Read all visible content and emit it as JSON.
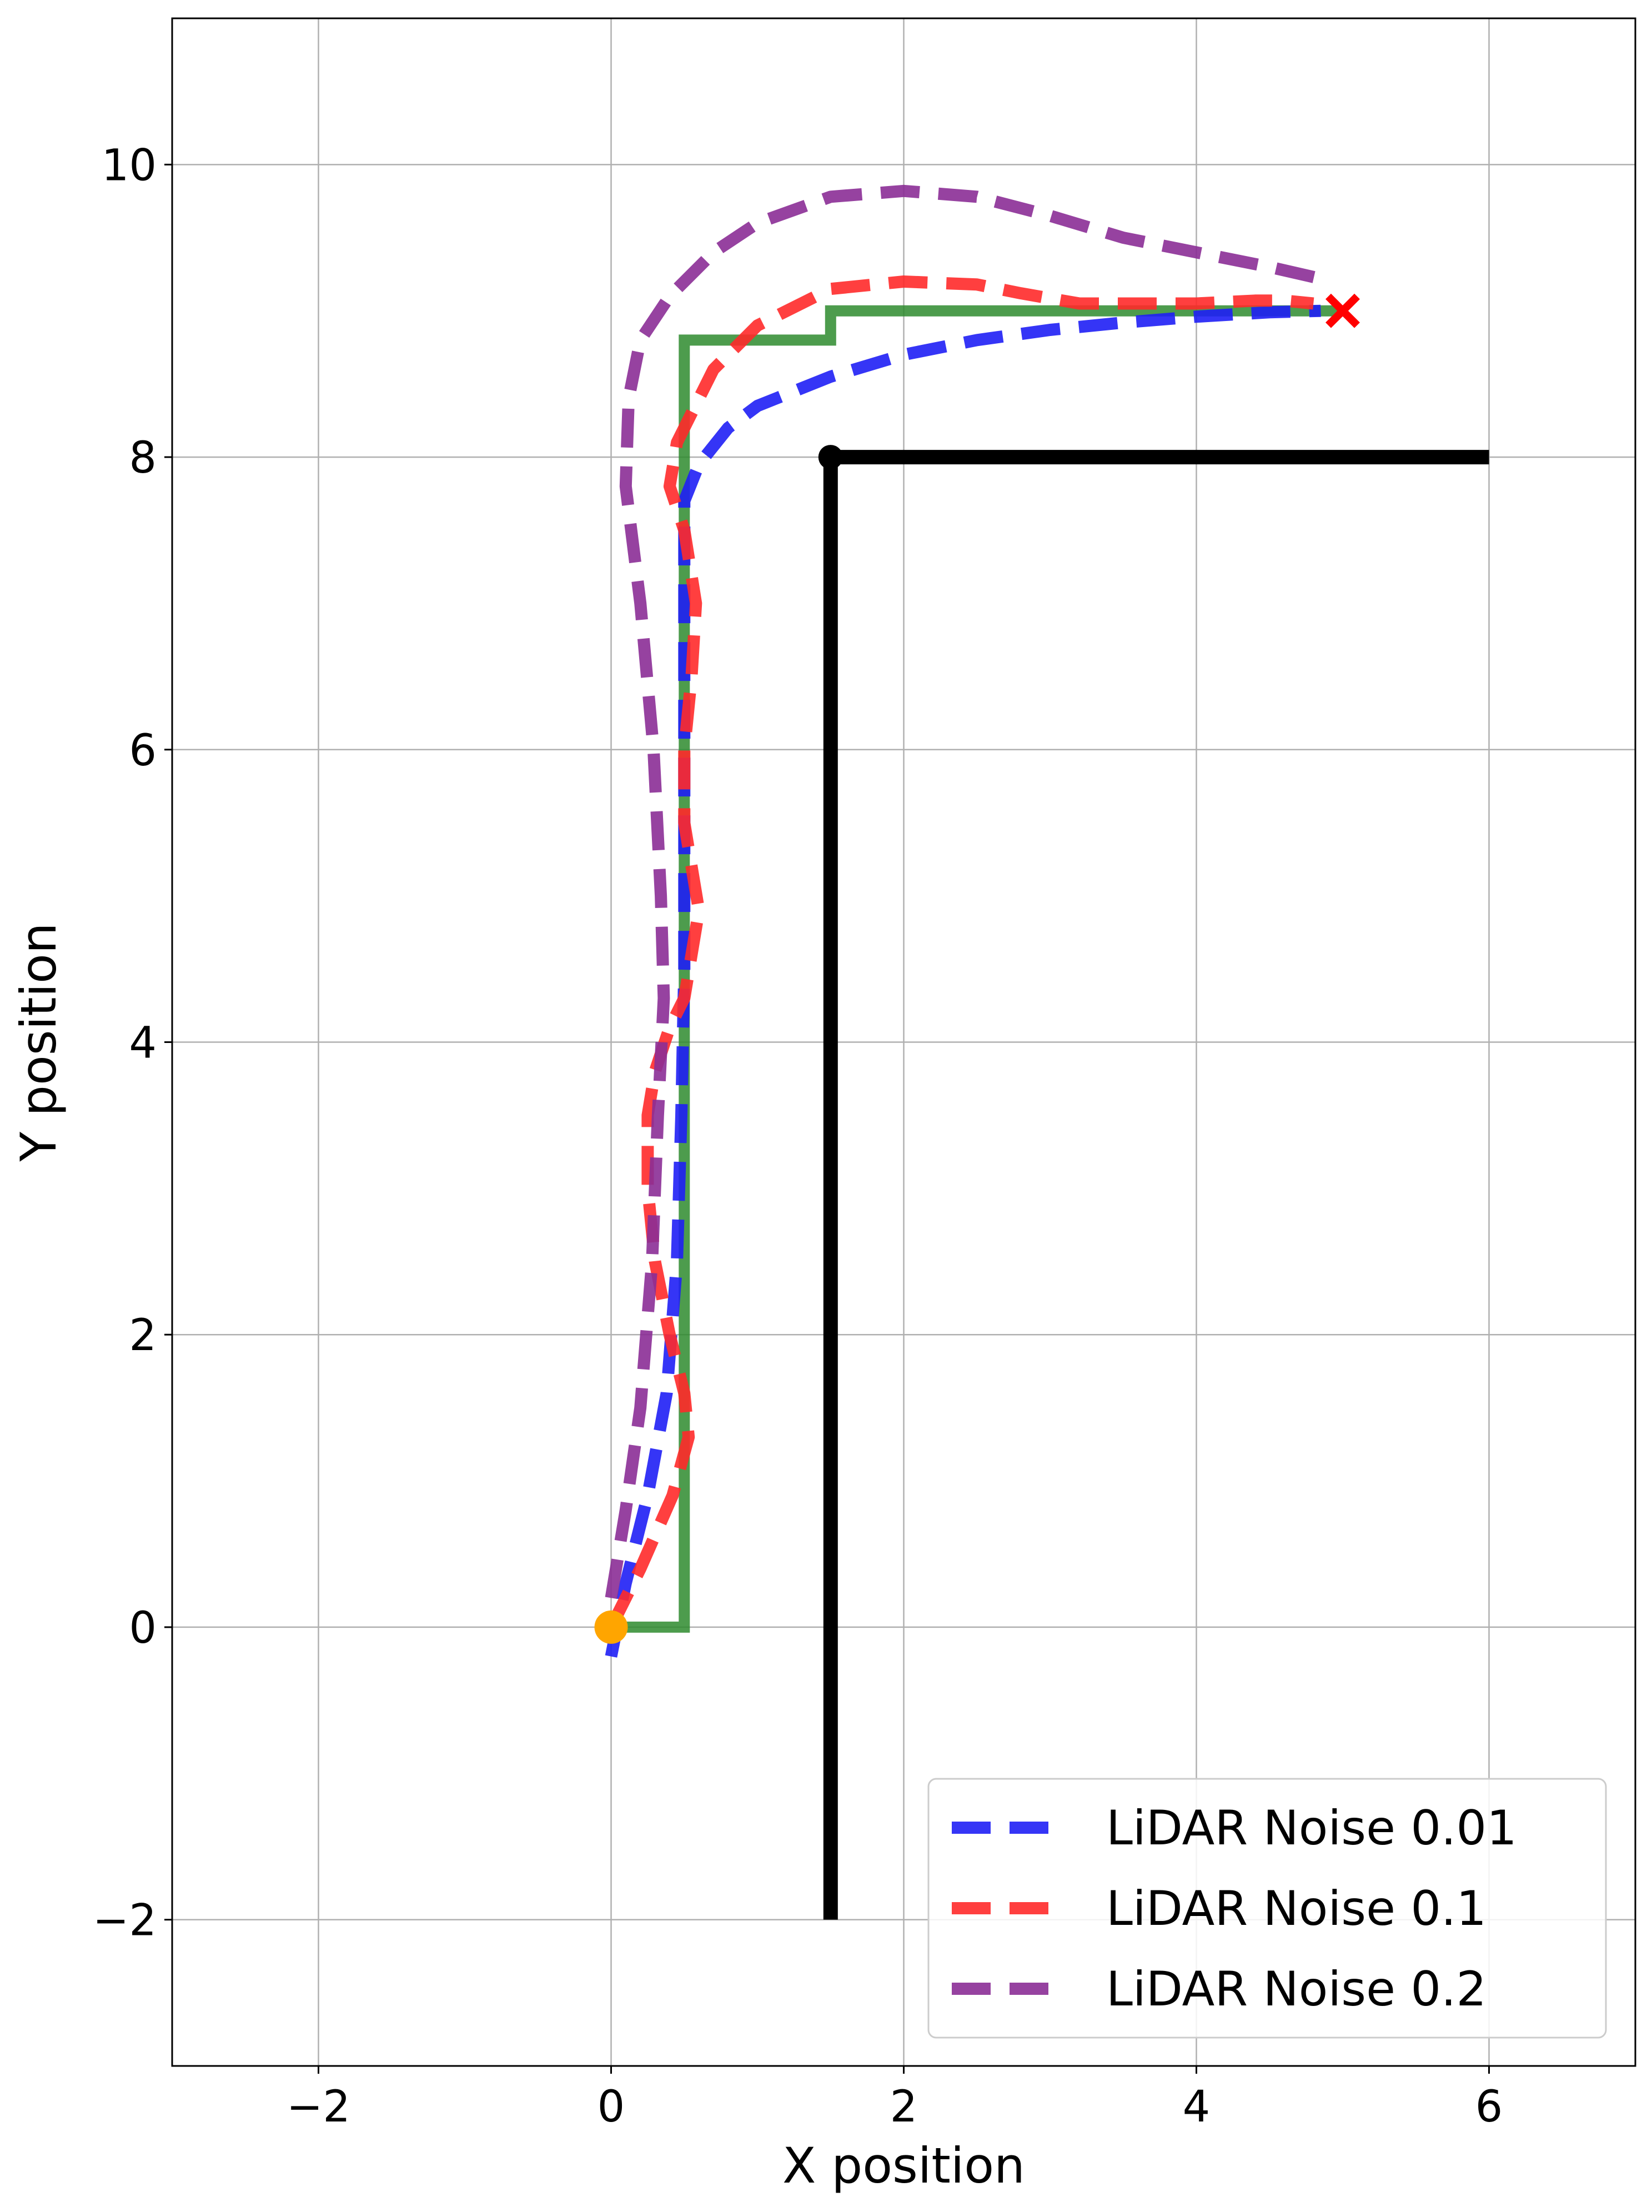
{
  "chart_data": {
    "type": "line",
    "xlabel": "X position",
    "ylabel": "Y position",
    "xlim": [
      -3,
      7
    ],
    "ylim": [
      -3,
      11
    ],
    "xticks": [
      -2,
      0,
      2,
      4,
      6
    ],
    "yticks": [
      -2,
      0,
      2,
      4,
      6,
      8,
      10
    ],
    "xtick_labels": [
      "−2",
      "0",
      "2",
      "4",
      "6"
    ],
    "ytick_labels": [
      "−2",
      "0",
      "2",
      "4",
      "6",
      "8",
      "10"
    ],
    "grid": true,
    "legend_position": "lower-right",
    "walls": [
      {
        "color": "#000000",
        "points": [
          [
            1.5,
            -2
          ],
          [
            1.5,
            8
          ],
          [
            6,
            8
          ]
        ]
      }
    ],
    "wall_corner": {
      "x": 1.5,
      "y": 8,
      "color": "#000000"
    },
    "reference_path": {
      "color": "#2e8b2e",
      "points": [
        [
          0,
          0
        ],
        [
          0.5,
          0
        ],
        [
          0.5,
          8.8
        ],
        [
          1.5,
          8.8
        ],
        [
          1.5,
          9.0
        ],
        [
          5.0,
          9.0
        ]
      ]
    },
    "series": [
      {
        "name": "LiDAR Noise 0.01",
        "color": "#1f1ff5",
        "points": [
          [
            0,
            -0.2
          ],
          [
            0.1,
            0.3
          ],
          [
            0.25,
            0.9
          ],
          [
            0.38,
            1.6
          ],
          [
            0.45,
            2.5
          ],
          [
            0.48,
            3.5
          ],
          [
            0.5,
            4.5
          ],
          [
            0.5,
            5.5
          ],
          [
            0.5,
            6.5
          ],
          [
            0.5,
            7.2
          ],
          [
            0.5,
            7.7
          ],
          [
            0.6,
            7.95
          ],
          [
            0.8,
            8.2
          ],
          [
            1.0,
            8.35
          ],
          [
            1.5,
            8.55
          ],
          [
            2.0,
            8.7
          ],
          [
            2.5,
            8.8
          ],
          [
            3.0,
            8.87
          ],
          [
            3.5,
            8.92
          ],
          [
            4.0,
            8.96
          ],
          [
            4.5,
            8.99
          ],
          [
            4.85,
            9.0
          ]
        ]
      },
      {
        "name": "LiDAR Noise 0.1",
        "color": "#ff2a2a",
        "points": [
          [
            0,
            0
          ],
          [
            0.2,
            0.4
          ],
          [
            0.42,
            0.9
          ],
          [
            0.53,
            1.3
          ],
          [
            0.5,
            1.6
          ],
          [
            0.4,
            2.0
          ],
          [
            0.3,
            2.5
          ],
          [
            0.25,
            3.0
          ],
          [
            0.25,
            3.5
          ],
          [
            0.3,
            3.8
          ],
          [
            0.4,
            4.1
          ],
          [
            0.5,
            4.3
          ],
          [
            0.6,
            4.9
          ],
          [
            0.5,
            5.5
          ],
          [
            0.5,
            6.0
          ],
          [
            0.55,
            6.5
          ],
          [
            0.58,
            7.0
          ],
          [
            0.5,
            7.5
          ],
          [
            0.4,
            7.8
          ],
          [
            0.45,
            8.1
          ],
          [
            0.55,
            8.3
          ],
          [
            0.7,
            8.6
          ],
          [
            1.0,
            8.9
          ],
          [
            1.5,
            9.15
          ],
          [
            2.0,
            9.2
          ],
          [
            2.5,
            9.18
          ],
          [
            2.8,
            9.12
          ],
          [
            3.2,
            9.05
          ],
          [
            3.6,
            9.05
          ],
          [
            4.0,
            9.05
          ],
          [
            4.4,
            9.07
          ],
          [
            4.6,
            9.07
          ],
          [
            4.8,
            9.05
          ]
        ]
      },
      {
        "name": "LiDAR Noise 0.2",
        "color": "#8b2e96",
        "points": [
          [
            0,
            0.2
          ],
          [
            0.1,
            0.8
          ],
          [
            0.2,
            1.5
          ],
          [
            0.28,
            2.5
          ],
          [
            0.32,
            3.5
          ],
          [
            0.36,
            4.3
          ],
          [
            0.34,
            5.0
          ],
          [
            0.29,
            6.0
          ],
          [
            0.2,
            7.0
          ],
          [
            0.1,
            7.8
          ],
          [
            0.12,
            8.4
          ],
          [
            0.2,
            8.8
          ],
          [
            0.4,
            9.1
          ],
          [
            0.7,
            9.4
          ],
          [
            1.0,
            9.6
          ],
          [
            1.5,
            9.78
          ],
          [
            2.0,
            9.82
          ],
          [
            2.5,
            9.78
          ],
          [
            3.0,
            9.65
          ],
          [
            3.5,
            9.5
          ],
          [
            4.0,
            9.4
          ],
          [
            4.5,
            9.3
          ],
          [
            4.85,
            9.22
          ]
        ]
      }
    ],
    "start_marker": {
      "x": 0,
      "y": 0,
      "color": "#ffa500"
    },
    "goal_marker": {
      "x": 5,
      "y": 9,
      "color": "#ff0000"
    }
  }
}
